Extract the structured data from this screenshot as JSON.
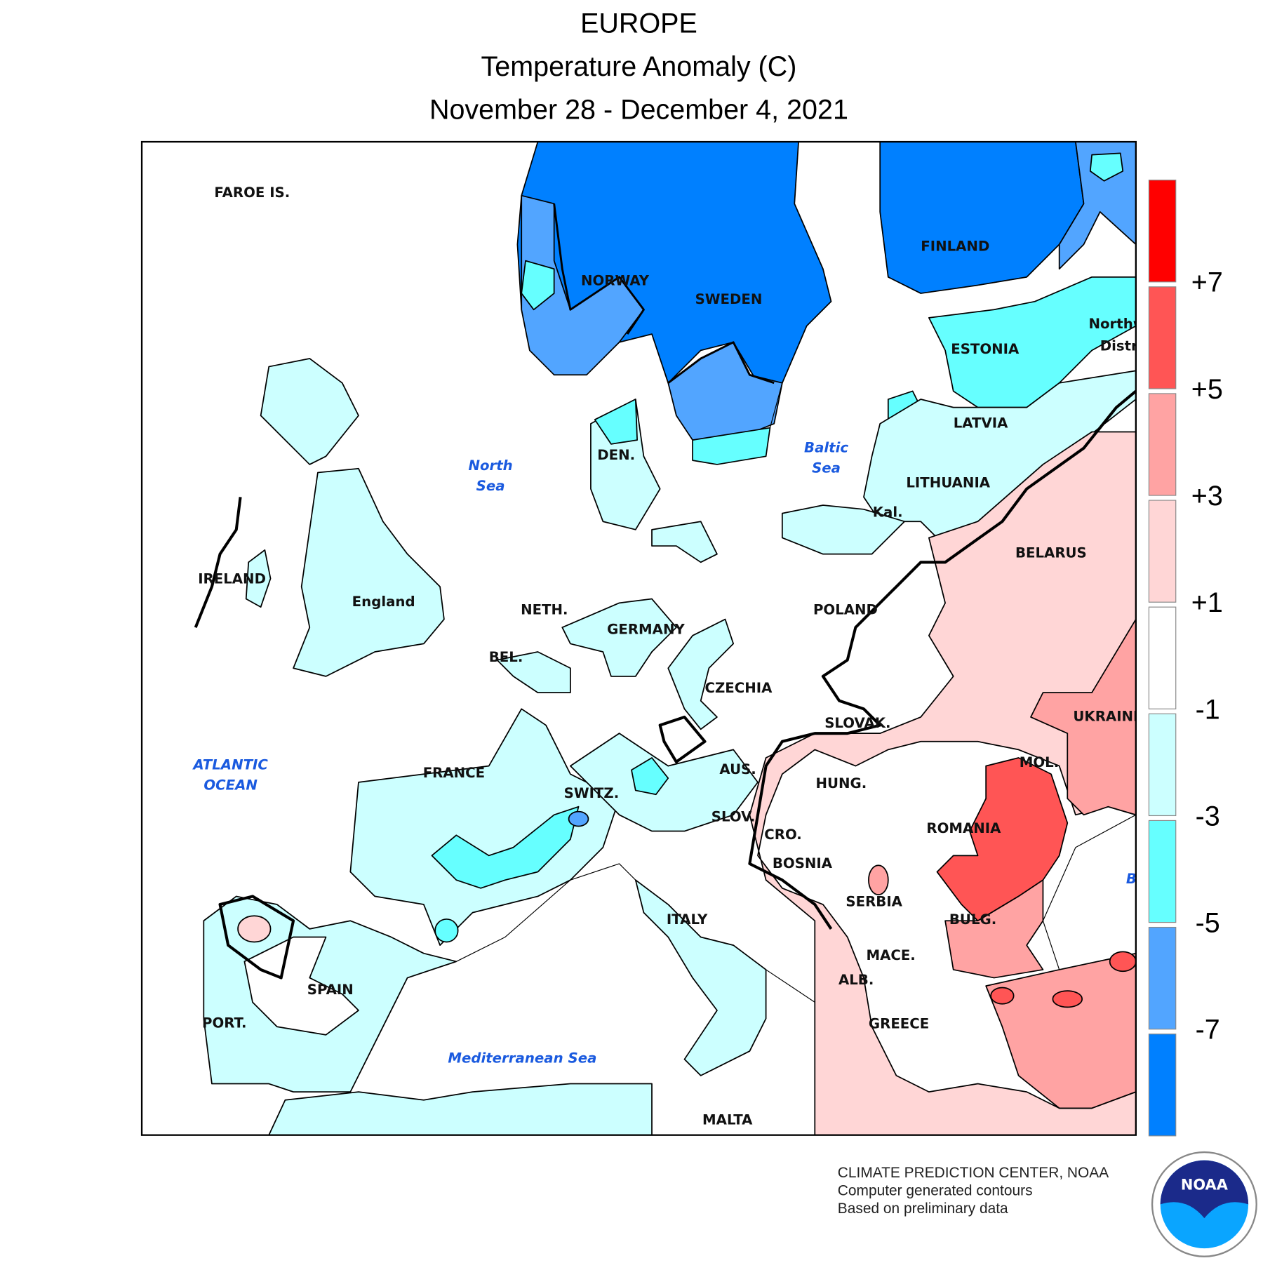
{
  "title": {
    "line1": "EUROPE",
    "line2": "Temperature Anomaly (C)",
    "line3": "November 28 - December 4, 2021"
  },
  "legend": {
    "colors": [
      "#ff0000",
      "#ff5555",
      "#ffa3a3",
      "#ffd6d6",
      "#ffffff",
      "#ccffff",
      "#66ffff",
      "#52a5ff",
      "#0080ff"
    ],
    "ticks": [
      "+7",
      "+5",
      "+3",
      "+1",
      "-1",
      "-3",
      "-5",
      "-7"
    ]
  },
  "map": {
    "country_labels": [
      "FAROE IS.",
      "NORWAY",
      "SWEDEN",
      "FINLAND",
      "ESTONIA",
      "Northw",
      "Distri",
      "LATVIA",
      "LITHUANIA",
      "Kal.",
      "DEN.",
      "BELARUS",
      "POLAND",
      "IRELAND",
      "England",
      "NETH.",
      "GERMANY",
      "BEL.",
      "CZECHIA",
      "SLOVAK.",
      "UKRAINE",
      "FRANCE",
      "SWITZ.",
      "AUS.",
      "HUNG.",
      "MOL.",
      "SLOV.",
      "CRO.",
      "ROMANIA",
      "BOSNIA",
      "SERBIA",
      "BULG.",
      "ITALY",
      "MACE.",
      "ALB.",
      "SPAIN",
      "PORT.",
      "GREECE",
      "MALTA"
    ],
    "sea_labels": [
      [
        "North",
        "Sea"
      ],
      [
        "Baltic",
        "Sea"
      ],
      [
        "ATLANTIC",
        "OCEAN"
      ],
      [
        "Mediterranean Sea"
      ],
      [
        "B"
      ]
    ]
  },
  "credits": {
    "line1": "CLIMATE PREDICTION CENTER, NOAA",
    "line2": "Computer generated contours",
    "line3": "Based on preliminary data"
  },
  "logo": {
    "text": "NOAA"
  }
}
